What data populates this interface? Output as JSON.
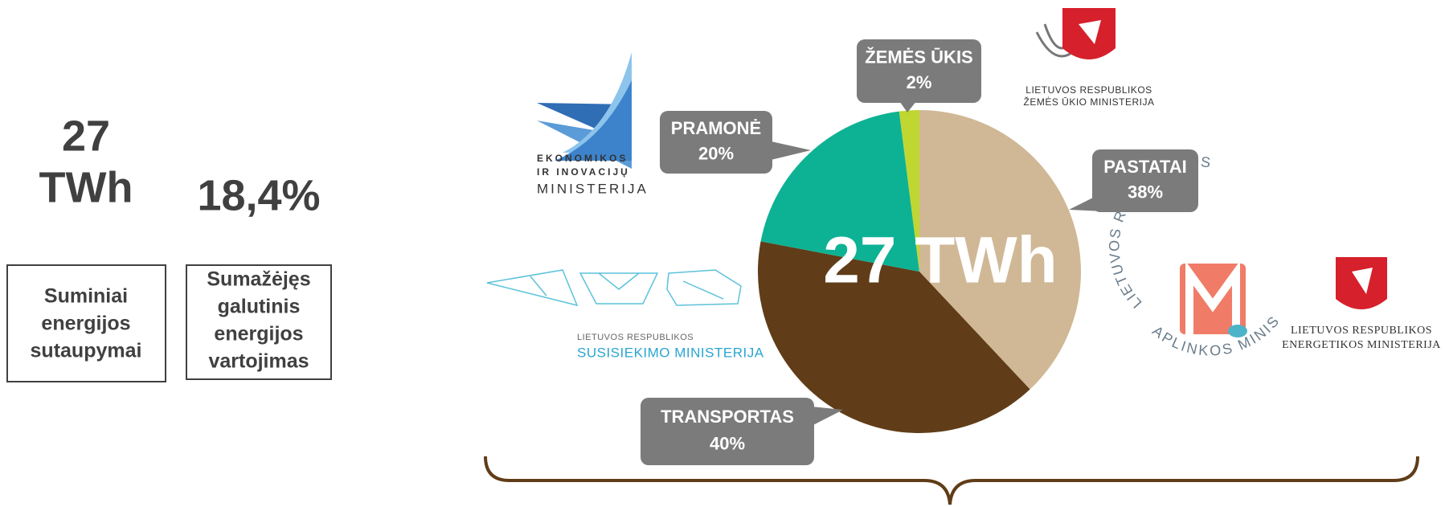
{
  "chart_data": {
    "type": "pie",
    "categories": [
      "PASTATAI",
      "TRANSPORTAS",
      "PRAMONĖ",
      "ŽEMĖS ŪKIS"
    ],
    "values": [
      38,
      40,
      20,
      2
    ],
    "value_labels": [
      "38%",
      "40%",
      "20%",
      "2%"
    ],
    "colors": [
      "#d0b896",
      "#603d18",
      "#0db294",
      "#c0d631"
    ],
    "center_label": "27 TWh"
  },
  "stats": [
    {
      "value": [
        "27",
        "TWh"
      ],
      "label": [
        "Suminiai",
        "energijos",
        "sutaupymai"
      ]
    },
    {
      "value": [
        "18,4%"
      ],
      "label": [
        "Sumažėjęs",
        "galutinis",
        "energijos",
        "vartojimas"
      ]
    }
  ],
  "logos": {
    "economy": [
      "EKONOMIKOS",
      "IR INOVACIJŲ",
      "MINISTERIJA"
    ],
    "agriculture": [
      "LIETUVOS RESPUBLIKOS",
      "ŽEMĖS ŪKIO MINISTERIJA"
    ],
    "transport": [
      "LIETUVOS RESPUBLIKOS",
      "SUSISIEKIMO MINISTERIJA"
    ],
    "environment": [
      "LIETUVOS RESPUBLIKOS",
      "APLINKOS MINISTERIJA"
    ],
    "energy": [
      "LIETUVOS RESPUBLIKOS",
      "ENERGETIKOS MINISTERIJA"
    ]
  }
}
